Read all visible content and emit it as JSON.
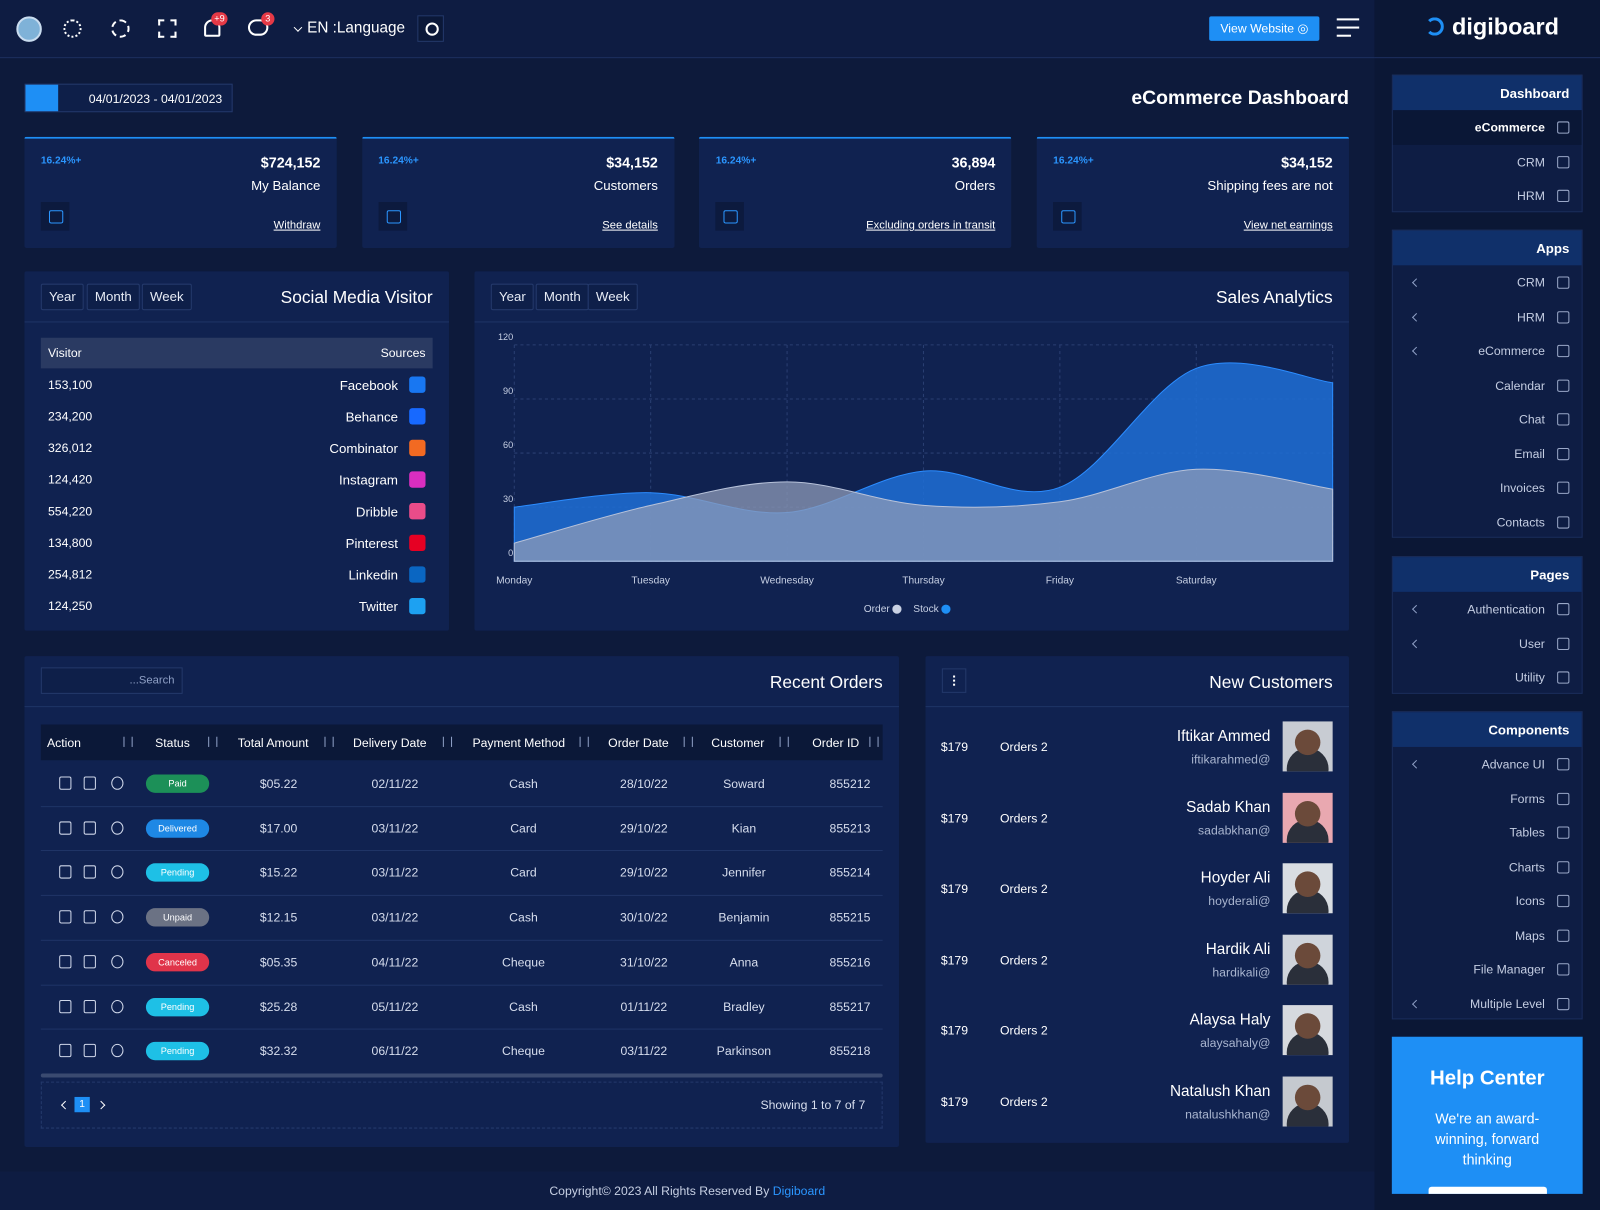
{
  "topbar": {
    "notifications_badge": "+9",
    "messages_badge": "3",
    "language": "EN :Language",
    "view_website": "View Website"
  },
  "brand": "digiboard",
  "date_range": "04/01/2023 - 04/01/2023",
  "page_title": "eCommerce Dashboard",
  "stats": [
    {
      "change": "16.24%+",
      "value": "$724,152",
      "label": "My Balance",
      "link": "Withdraw"
    },
    {
      "change": "16.24%+",
      "value": "$34,152",
      "label": "Customers",
      "link": "See details"
    },
    {
      "change": "16.24%+",
      "value": "36,894",
      "label": "Orders",
      "link": "Excluding orders in transit"
    },
    {
      "change": "16.24%+",
      "value": "$34,152",
      "label": "Shipping fees are not",
      "link": "View net earnings"
    }
  ],
  "social": {
    "title": "Social Media Visitor",
    "tabs": [
      "Year",
      "Month",
      "Week"
    ],
    "headers": [
      "Visitor",
      "Sources"
    ],
    "rows": [
      {
        "visitor": "153,100",
        "source": "Facebook"
      },
      {
        "visitor": "234,200",
        "source": "Behance"
      },
      {
        "visitor": "326,012",
        "source": "Combinator"
      },
      {
        "visitor": "124,420",
        "source": "Instagram"
      },
      {
        "visitor": "554,220",
        "source": "Dribble"
      },
      {
        "visitor": "134,800",
        "source": "Pinterest"
      },
      {
        "visitor": "254,812",
        "source": "Linkedin"
      },
      {
        "visitor": "124,250",
        "source": "Twitter"
      }
    ]
  },
  "sales": {
    "tabs": [
      "Year",
      "Month",
      "Week"
    ],
    "chart_data": {
      "type": "area",
      "title": "Sales Analytics",
      "categories": [
        "Monday",
        "Tuesday",
        "Wednesday",
        "Thursday",
        "Friday",
        "Saturday",
        null
      ],
      "series": [
        {
          "name": "Stock",
          "color": "#1f6fd6",
          "values": [
            30,
            38,
            27,
            50,
            41,
            107,
            99
          ]
        },
        {
          "name": "Order",
          "color": "#8d9bb8",
          "values": [
            10,
            31,
            44,
            31,
            33,
            51,
            40
          ]
        }
      ],
      "ylim": [
        0,
        120
      ],
      "yticks": [
        0,
        30,
        60,
        90,
        120
      ],
      "grid": true
    }
  },
  "orders": {
    "title": "Recent Orders",
    "search_placeholder": "...Search",
    "headers": [
      "Action",
      "Status",
      "Total Amount",
      "Delivery Date",
      "Payment Method",
      "Order Date",
      "Customer",
      "Order ID"
    ],
    "rows": [
      {
        "status": "Paid",
        "amount": "$05.22",
        "delivery": "02/11/22",
        "payment": "Cash",
        "order_date": "28/10/22",
        "customer": "Soward",
        "id": "855212"
      },
      {
        "status": "Delivered",
        "amount": "$17.00",
        "delivery": "03/11/22",
        "payment": "Card",
        "order_date": "29/10/22",
        "customer": "Kian",
        "id": "855213"
      },
      {
        "status": "Pending",
        "amount": "$15.22",
        "delivery": "03/11/22",
        "payment": "Card",
        "order_date": "29/10/22",
        "customer": "Jennifer",
        "id": "855214"
      },
      {
        "status": "Unpaid",
        "amount": "$12.15",
        "delivery": "03/11/22",
        "payment": "Cash",
        "order_date": "30/10/22",
        "customer": "Benjamin",
        "id": "855215"
      },
      {
        "status": "Canceled",
        "amount": "$05.35",
        "delivery": "04/11/22",
        "payment": "Cheque",
        "order_date": "31/10/22",
        "customer": "Anna",
        "id": "855216"
      },
      {
        "status": "Pending",
        "amount": "$25.28",
        "delivery": "05/11/22",
        "payment": "Cash",
        "order_date": "01/11/22",
        "customer": "Bradley",
        "id": "855217"
      },
      {
        "status": "Pending",
        "amount": "$32.32",
        "delivery": "06/11/22",
        "payment": "Cheque",
        "order_date": "03/11/22",
        "customer": "Parkinson",
        "id": "855218"
      }
    ],
    "page": "1",
    "showing": "Showing 1 to 7 of 7"
  },
  "customers": {
    "title": "New Customers",
    "rows": [
      {
        "amount": "$179",
        "orders": "Orders 2",
        "name": "Iftikar Ammed",
        "email": "iftikarahmed@"
      },
      {
        "amount": "$179",
        "orders": "Orders 2",
        "name": "Sadab Khan",
        "email": "sadabkhan@"
      },
      {
        "amount": "$179",
        "orders": "Orders 2",
        "name": "Hoyder Ali",
        "email": "hoyderali@"
      },
      {
        "amount": "$179",
        "orders": "Orders 2",
        "name": "Hardik Ali",
        "email": "hardikali@"
      },
      {
        "amount": "$179",
        "orders": "Orders 2",
        "name": "Alaysa Haly",
        "email": "alaysahaly@"
      },
      {
        "amount": "$179",
        "orders": "Orders 2",
        "name": "Natalush Khan",
        "email": "natalushkhan@"
      }
    ]
  },
  "sidebar": [
    {
      "title": "Dashboard",
      "items": [
        {
          "label": "eCommerce",
          "active": true
        },
        {
          "label": "CRM"
        },
        {
          "label": "HRM"
        }
      ]
    },
    {
      "title": "Apps",
      "items": [
        {
          "label": "CRM",
          "submenu": true
        },
        {
          "label": "HRM",
          "submenu": true
        },
        {
          "label": "eCommerce",
          "submenu": true
        },
        {
          "label": "Calendar"
        },
        {
          "label": "Chat"
        },
        {
          "label": "Email"
        },
        {
          "label": "Invoices"
        },
        {
          "label": "Contacts"
        }
      ]
    },
    {
      "title": "Pages",
      "items": [
        {
          "label": "Authentication",
          "submenu": true
        },
        {
          "label": "User",
          "submenu": true
        },
        {
          "label": "Utility"
        }
      ]
    },
    {
      "title": "Components",
      "items": [
        {
          "label": "Advance UI",
          "submenu": true
        },
        {
          "label": "Forms"
        },
        {
          "label": "Tables"
        },
        {
          "label": "Charts"
        },
        {
          "label": "Icons"
        },
        {
          "label": "Maps"
        },
        {
          "label": "File Manager"
        },
        {
          "label": "Multiple Level",
          "submenu": true
        }
      ]
    }
  ],
  "help": {
    "title": "Help Center",
    "text": "We're an award-winning, forward thinking"
  },
  "footer": {
    "text": "Copyright© 2023 All Rights Reserved By",
    "link": "Digiboard"
  }
}
